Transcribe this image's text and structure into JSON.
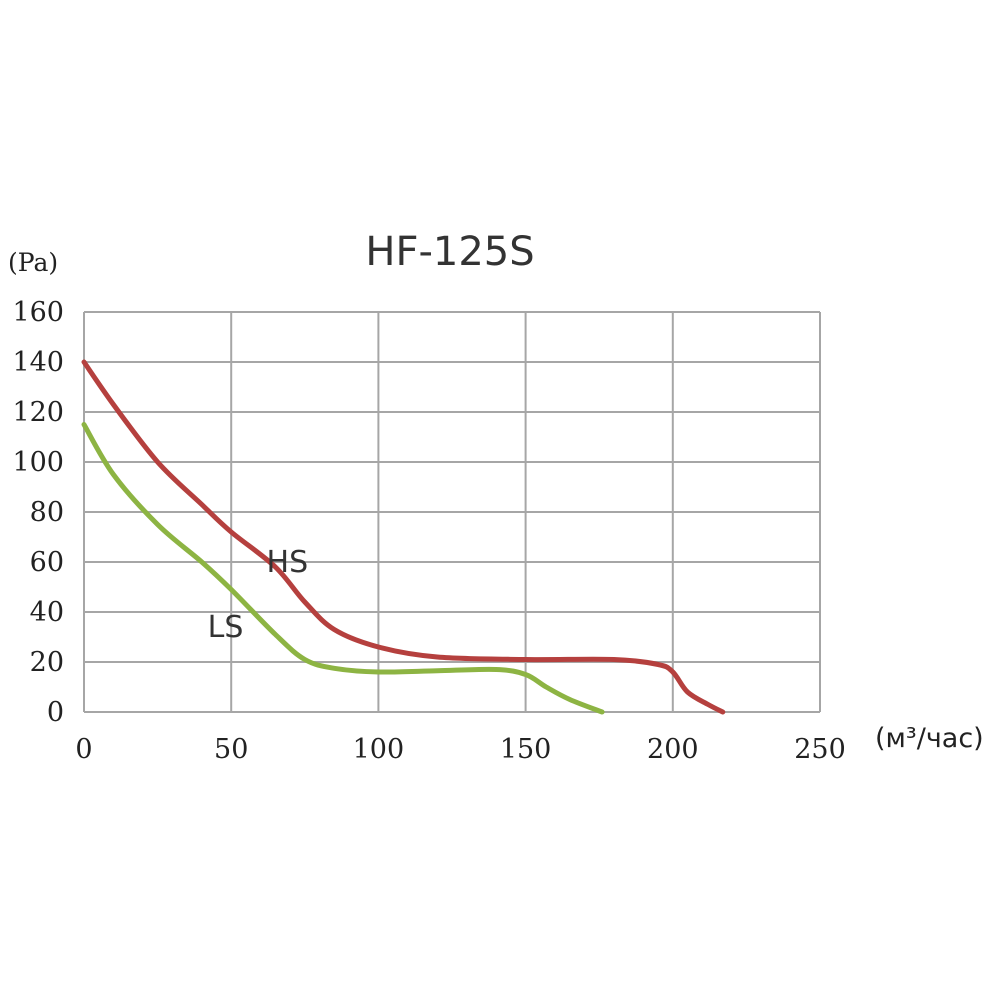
{
  "chart_data": {
    "type": "line",
    "title": "HF-125S",
    "ylabel": "(Pa)",
    "xlabel": "(м³/час)",
    "xlim": [
      0,
      250
    ],
    "ylim": [
      0,
      160
    ],
    "x_ticks": [
      0,
      50,
      100,
      150,
      200,
      250
    ],
    "y_ticks": [
      0,
      20,
      40,
      60,
      80,
      100,
      120,
      140,
      160
    ],
    "grid": true,
    "series": [
      {
        "name": "HS",
        "color": "#b5403e",
        "points": [
          [
            0,
            140
          ],
          [
            10,
            123
          ],
          [
            25,
            100
          ],
          [
            40,
            83
          ],
          [
            50,
            72
          ],
          [
            65,
            58
          ],
          [
            75,
            44
          ],
          [
            85,
            33
          ],
          [
            100,
            26
          ],
          [
            120,
            22
          ],
          [
            150,
            21
          ],
          [
            180,
            21
          ],
          [
            195,
            19
          ],
          [
            200,
            16
          ],
          [
            205,
            8
          ],
          [
            212,
            3
          ],
          [
            217,
            0
          ]
        ]
      },
      {
        "name": "LS",
        "color": "#8db443",
        "points": [
          [
            0,
            115
          ],
          [
            10,
            95
          ],
          [
            25,
            75
          ],
          [
            40,
            60
          ],
          [
            50,
            49
          ],
          [
            65,
            31
          ],
          [
            75,
            21
          ],
          [
            85,
            17.5
          ],
          [
            100,
            16
          ],
          [
            120,
            16.5
          ],
          [
            140,
            17
          ],
          [
            150,
            15
          ],
          [
            157,
            10
          ],
          [
            165,
            5
          ],
          [
            176,
            0
          ]
        ]
      }
    ]
  }
}
